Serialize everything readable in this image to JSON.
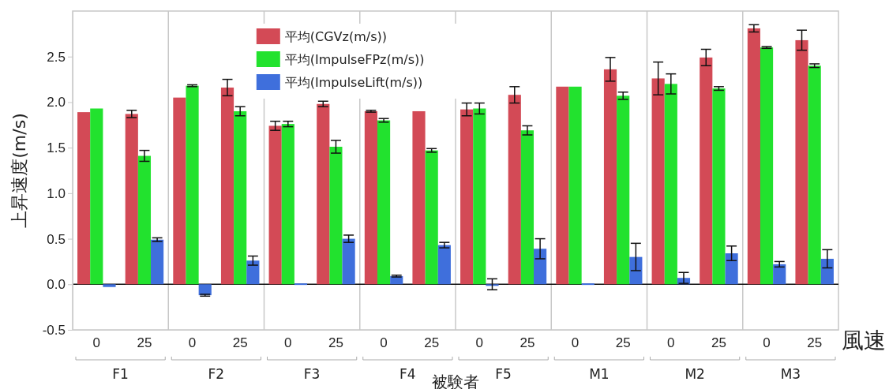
{
  "chart_data": {
    "type": "bar",
    "ylabel": "上昇速度(m/s)",
    "xlabel": "被験者",
    "categories": [
      "0",
      "25",
      "0",
      "25",
      "0",
      "25",
      "0",
      "25",
      "0",
      "25",
      "0",
      "25",
      "0",
      "25",
      "0",
      "25"
    ],
    "annotations": [
      "F1",
      "F2",
      "F3",
      "F4",
      "F5",
      "M1",
      "M2",
      "M3",
      "風速"
    ],
    "series": [
      {
        "name": "平均(CGVz(m/s))",
        "color": "#d34a56",
        "values": [
          1.89,
          1.87,
          2.05,
          2.16,
          1.74,
          1.98,
          1.9,
          1.9,
          1.92,
          2.08,
          2.17,
          2.36,
          2.26,
          2.49,
          2.81,
          2.68
        ],
        "errors": [
          null,
          0.04,
          null,
          0.09,
          0.05,
          0.03,
          0.01,
          null,
          0.07,
          0.09,
          null,
          0.13,
          0.18,
          0.09,
          0.04,
          0.11
        ]
      },
      {
        "name": "平均(ImpulseFPz(m/s))",
        "color": "#22e22e",
        "values": [
          1.93,
          1.41,
          2.18,
          1.9,
          1.76,
          1.51,
          1.8,
          1.47,
          1.93,
          1.69,
          2.17,
          2.07,
          2.2,
          2.15,
          2.6,
          2.4
        ],
        "errors": [
          null,
          0.06,
          0.01,
          0.05,
          0.03,
          0.07,
          0.02,
          0.02,
          0.06,
          0.05,
          null,
          0.04,
          0.11,
          0.02,
          0.01,
          0.02
        ]
      },
      {
        "name": "平均(ImpulseLift(m/s))",
        "color": "#3f6fdc",
        "values": [
          -0.03,
          0.49,
          -0.12,
          0.26,
          0.01,
          0.5,
          0.09,
          0.43,
          0.0,
          0.39,
          0.01,
          0.3,
          0.07,
          0.34,
          0.22,
          0.28
        ],
        "errors": [
          null,
          0.02,
          0.01,
          0.05,
          null,
          0.04,
          0.01,
          0.03,
          0.06,
          0.11,
          null,
          0.15,
          0.06,
          0.08,
          0.03,
          0.1
        ]
      }
    ],
    "ylim": [
      -0.5,
      3.0
    ],
    "yticks": [
      {
        "value": -0.5,
        "label": "-0.5"
      },
      {
        "value": 0,
        "label": "0.0"
      },
      {
        "value": 0.5,
        "label": "0.5"
      },
      {
        "value": 1,
        "label": "1.0"
      },
      {
        "value": 1.5,
        "label": "1.5"
      },
      {
        "value": 2,
        "label": "2.0"
      },
      {
        "value": 2.5,
        "label": "2.5"
      }
    ],
    "legend": "top"
  }
}
